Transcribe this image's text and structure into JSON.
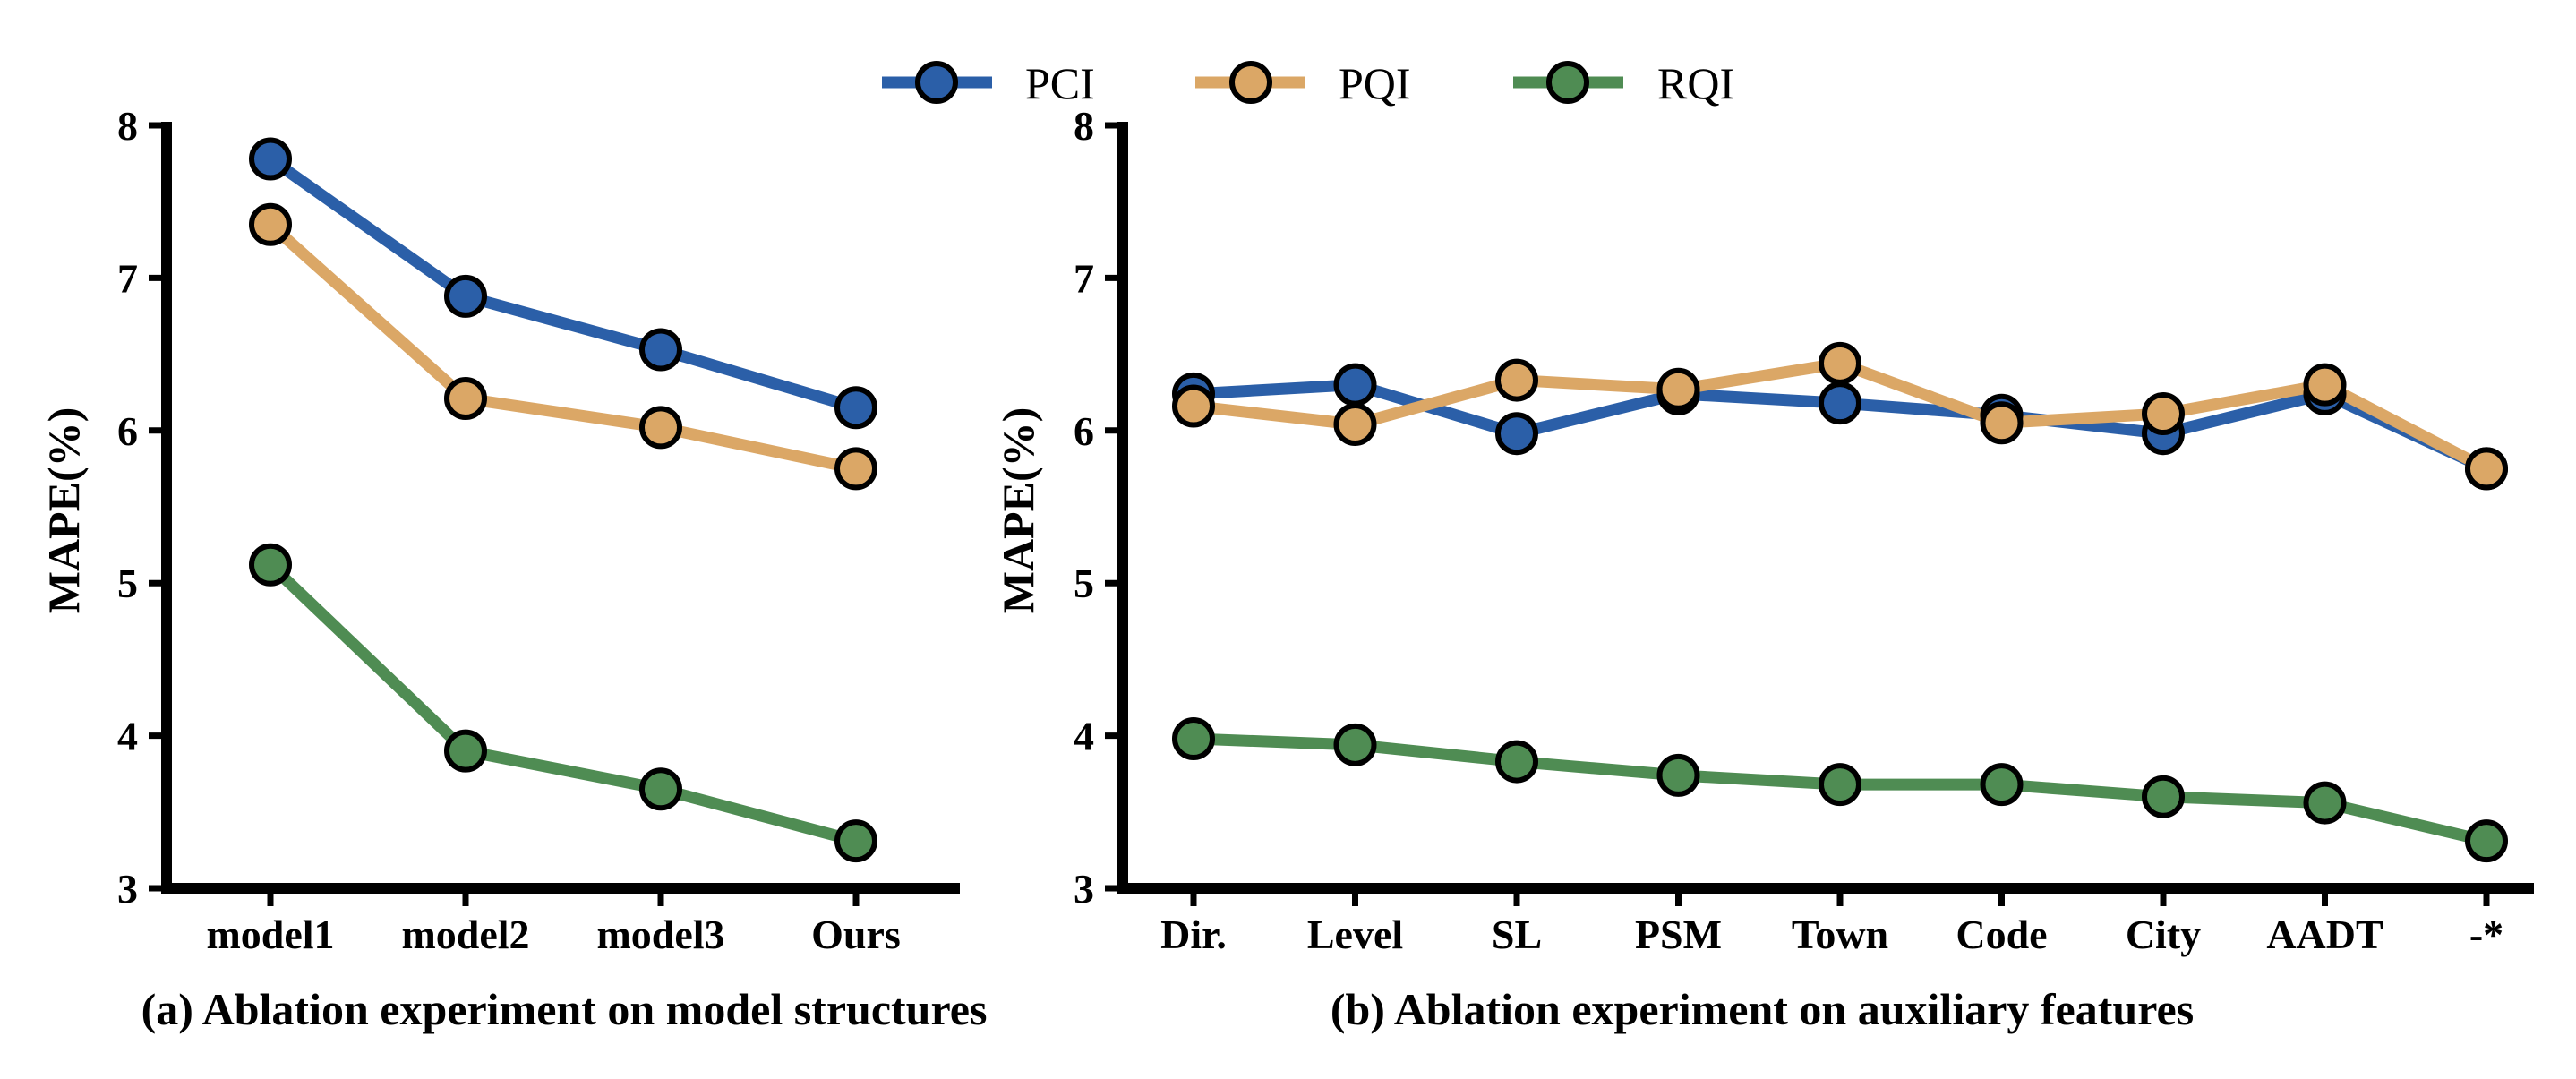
{
  "legend": [
    {
      "name": "PCI",
      "color": "#2b5fa8"
    },
    {
      "name": "PQI",
      "color": "#dba766"
    },
    {
      "name": "RQI",
      "color": "#4f8c53"
    }
  ],
  "chart_data": [
    {
      "type": "line",
      "caption": "(a) Ablation experiment on model structures",
      "ylabel": "MAPE(%)",
      "ylim": [
        3,
        8
      ],
      "yticks": [
        "3",
        "4",
        "5",
        "6",
        "7",
        "8"
      ],
      "categories": [
        "model1",
        "model2",
        "model3",
        "Ours"
      ],
      "series": [
        {
          "name": "PCI",
          "color": "#2b5fa8",
          "values": [
            7.78,
            6.88,
            6.53,
            6.15
          ]
        },
        {
          "name": "PQI",
          "color": "#dba766",
          "values": [
            7.35,
            6.21,
            6.02,
            5.75
          ]
        },
        {
          "name": "RQI",
          "color": "#4f8c53",
          "values": [
            5.12,
            3.9,
            3.65,
            3.31
          ]
        }
      ]
    },
    {
      "type": "line",
      "caption": "(b) Ablation experiment on auxiliary features",
      "ylabel": "MAPE(%)",
      "ylim": [
        3,
        8
      ],
      "yticks": [
        "3",
        "4",
        "5",
        "6",
        "7",
        "8"
      ],
      "categories": [
        "Dir.",
        "Level",
        "SL",
        "PSM",
        "Town",
        "Code",
        "City",
        "AADT",
        "-*"
      ],
      "series": [
        {
          "name": "PCI",
          "color": "#2b5fa8",
          "values": [
            6.24,
            6.3,
            5.98,
            6.24,
            6.18,
            6.1,
            5.98,
            6.24,
            5.75
          ]
        },
        {
          "name": "PQI",
          "color": "#dba766",
          "values": [
            6.16,
            6.04,
            6.33,
            6.27,
            6.44,
            6.05,
            6.11,
            6.3,
            5.75
          ]
        },
        {
          "name": "RQI",
          "color": "#4f8c53",
          "values": [
            3.98,
            3.94,
            3.83,
            3.74,
            3.68,
            3.68,
            3.6,
            3.56,
            3.31
          ]
        }
      ]
    }
  ]
}
